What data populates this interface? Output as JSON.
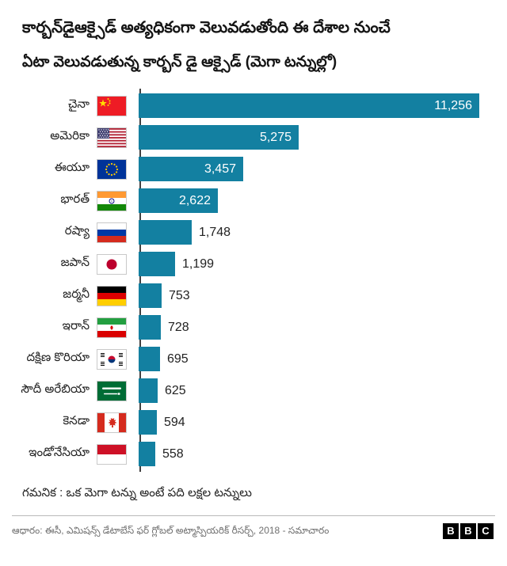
{
  "header": {
    "title": "కార్బన్‌డైఆక్సైడ్ అత్యధికంగా వెలువడుతోంది ఈ దేశాల నుంచే",
    "subtitle": "ఏటా వెలువడుతున్న కార్బన్ డై ఆక్సైడ్ (మెగా టన్నుల్లో)"
  },
  "chart_data": {
    "type": "bar",
    "orientation": "horizontal",
    "title": "కార్బన్‌డైఆక్సైడ్ అత్యధికంగా వెలువడుతోంది ఈ దేశాల నుంచే",
    "subtitle": "ఏటా వెలువడుతున్న కార్బన్ డై ఆక్సైడ్ (మెగా టన్నుల్లో)",
    "categories": [
      "చైనా",
      "అమెరికా",
      "ఈయూ",
      "భారత్",
      "రష్యా",
      "జపాన్",
      "జర్మనీ",
      "ఇరాన్",
      "దక్షిణ కొరియా",
      "సౌదీ అరేబియా",
      "కెనడా",
      "ఇండోనేసియా"
    ],
    "values": [
      11256,
      5275,
      3457,
      2622,
      1748,
      1199,
      753,
      728,
      695,
      625,
      594,
      558
    ],
    "value_labels": [
      "11,256",
      "5,275",
      "3,457",
      "2,622",
      "1,748",
      "1,199",
      "753",
      "728",
      "695",
      "625",
      "594",
      "558"
    ],
    "flags": [
      "china-flag",
      "usa-flag",
      "eu-flag",
      "india-flag",
      "russia-flag",
      "japan-flag",
      "germany-flag",
      "iran-flag",
      "south-korea-flag",
      "saudi-arabia-flag",
      "canada-flag",
      "indonesia-flag"
    ],
    "bar_color": "#1380A1",
    "xlim": [
      0,
      11800
    ],
    "grid": false,
    "legend": false
  },
  "note": "గమనిక : ఒక మెగా టన్ను అంటే పది లక్షల టన్నులు",
  "footer": {
    "source": "ఆధారం: ఈసీ, ఎమిషన్స్ డేటాబేస్ ఫర్ గ్లోబల్ అట్మాస్పియరిక్ రీసర్చ్, 2018 - సమాచారం",
    "logo_letters": [
      "B",
      "B",
      "C"
    ]
  }
}
